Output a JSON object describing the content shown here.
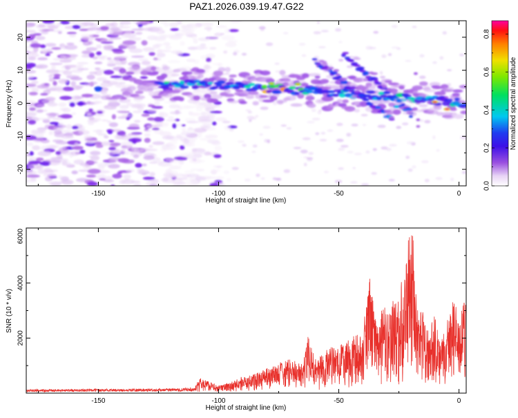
{
  "figure_title": "PAZ1.2026.039.19.47.G22",
  "colors": {
    "signal_line": "#e8302b",
    "axis": "#000000",
    "background": "#ffffff"
  },
  "chart_data": [
    {
      "type": "heatmap",
      "title": "PAZ1.2026.039.19.47.G22",
      "xlabel": "Height of straight line (km)",
      "ylabel": "Frequency (Hz)",
      "xlim": [
        -180,
        3
      ],
      "ylim": [
        -25,
        25
      ],
      "x_ticks": [
        -150,
        -100,
        -50,
        0
      ],
      "y_ticks": [
        -20,
        -10,
        0,
        10,
        20
      ],
      "colorbar": {
        "label": "Normalized spectral amplitude",
        "range": [
          0.0,
          0.87
        ],
        "ticks": [
          0.0,
          0.2,
          0.4,
          0.6,
          0.8
        ],
        "colormap": "rainbow (white-violet-blue-cyan-green-yellow-red-magenta)"
      },
      "features": [
        {
          "name": "carrier trace",
          "x_range": [
            -125,
            3
          ],
          "freq_start": 6,
          "freq_end": 0,
          "max_amplitude": 0.87
        },
        {
          "name": "multipath branch 1",
          "x_range": [
            -60,
            -28
          ],
          "freq_start": 13,
          "freq_end": -5,
          "max_amplitude": 0.3
        },
        {
          "name": "multipath branch 2",
          "x_range": [
            -48,
            -20
          ],
          "freq_start": 15,
          "freq_end": -3,
          "max_amplitude": 0.3
        },
        {
          "name": "noise region",
          "x_range": [
            -180,
            -100
          ],
          "freq_range": [
            -25,
            25
          ],
          "max_amplitude": 0.12
        }
      ]
    },
    {
      "type": "line",
      "xlabel": "Height of straight line (km)",
      "ylabel": "SNR (10 * v/v)",
      "xlim": [
        -180,
        3
      ],
      "ylim": [
        0,
        6000
      ],
      "x_ticks": [
        -150,
        -100,
        -50,
        0
      ],
      "y_ticks": [
        2000,
        4000,
        6000
      ],
      "series": [
        {
          "name": "SNR",
          "color": "#e8302b",
          "x": [
            -180,
            -150,
            -120,
            -110,
            -108,
            -100,
            -95,
            -90,
            -85,
            -80,
            -75,
            -70,
            -65,
            -63,
            -60,
            -55,
            -50,
            -45,
            -40,
            -37,
            -35,
            -30,
            -25,
            -22,
            -20,
            -19,
            -18,
            -15,
            -12,
            -10,
            -8,
            -5,
            -2,
            0,
            2,
            3
          ],
          "y": [
            140,
            150,
            170,
            200,
            550,
            280,
            400,
            620,
            700,
            900,
            1100,
            1250,
            1050,
            2200,
            1300,
            1600,
            1800,
            2000,
            2300,
            4300,
            2800,
            3200,
            3500,
            5200,
            6000,
            5800,
            3800,
            3000,
            2600,
            2900,
            1900,
            2700,
            3500,
            2600,
            3300,
            4000
          ]
        }
      ]
    }
  ]
}
